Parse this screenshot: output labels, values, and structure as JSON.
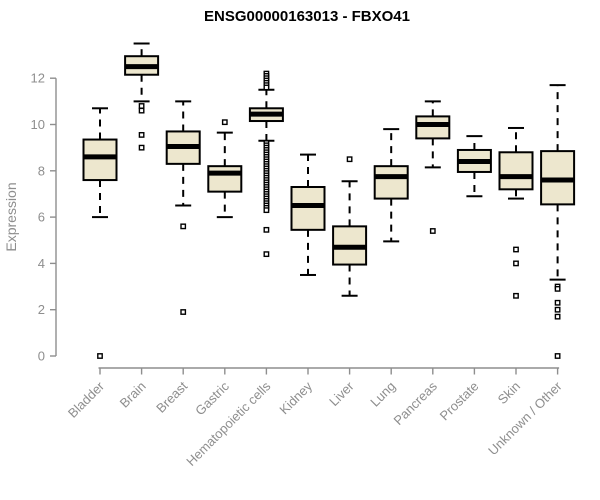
{
  "chart_data": {
    "type": "boxplot",
    "title": "ENSG00000163013 - FBXO41",
    "ylabel": "Expression",
    "yticks": [
      0,
      2,
      4,
      6,
      8,
      10,
      12
    ],
    "ylim": [
      0,
      13.7
    ],
    "grid": false,
    "legend": "none",
    "categories": [
      "Bladder",
      "Brain",
      "Breast",
      "Gastric",
      "Hematopoietic cells",
      "Kidney",
      "Liver",
      "Lung",
      "Pancreas",
      "Prostate",
      "Skin",
      "Unknown / Other"
    ],
    "series": [
      {
        "name": "Bladder",
        "whisker_low": 6.0,
        "q1": 7.6,
        "median": 8.6,
        "q3": 9.35,
        "whisker_high": 10.7,
        "outliers": [
          0
        ]
      },
      {
        "name": "Brain",
        "whisker_low": 11.0,
        "q1": 12.15,
        "median": 12.5,
        "q3": 12.95,
        "whisker_high": 13.5,
        "outliers": [
          10.8,
          10.6,
          9.55,
          9.0
        ]
      },
      {
        "name": "Breast",
        "whisker_low": 6.5,
        "q1": 8.3,
        "median": 9.05,
        "q3": 9.7,
        "whisker_high": 11.0,
        "outliers": [
          5.6,
          1.9
        ]
      },
      {
        "name": "Gastric",
        "whisker_low": 6.0,
        "q1": 7.1,
        "median": 7.9,
        "q3": 8.2,
        "whisker_high": 9.65,
        "outliers": [
          10.1
        ]
      },
      {
        "name": "Hematopoietic cells",
        "whisker_low": 9.3,
        "q1": 10.15,
        "median": 10.45,
        "q3": 10.7,
        "whisker_high": 11.5,
        "outliers": [
          12.2,
          12.1,
          12.0,
          11.9,
          11.8,
          11.7,
          11.6,
          9.2,
          9.1,
          9.0,
          8.9,
          8.8,
          8.7,
          8.6,
          8.5,
          8.4,
          8.3,
          8.2,
          8.1,
          8.0,
          7.9,
          7.8,
          7.7,
          7.6,
          7.5,
          7.4,
          7.3,
          7.2,
          7.1,
          7.0,
          6.9,
          6.8,
          6.7,
          6.6,
          6.5,
          6.4,
          6.3,
          5.45,
          4.4
        ]
      },
      {
        "name": "Kidney",
        "whisker_low": 3.5,
        "q1": 5.45,
        "median": 6.5,
        "q3": 7.3,
        "whisker_high": 8.7,
        "outliers": []
      },
      {
        "name": "Liver",
        "whisker_low": 2.6,
        "q1": 3.95,
        "median": 4.7,
        "q3": 5.6,
        "whisker_high": 7.55,
        "outliers": [
          8.5
        ]
      },
      {
        "name": "Lung",
        "whisker_low": 4.95,
        "q1": 6.8,
        "median": 7.75,
        "q3": 8.2,
        "whisker_high": 9.8,
        "outliers": []
      },
      {
        "name": "Pancreas",
        "whisker_low": 8.15,
        "q1": 9.4,
        "median": 10.0,
        "q3": 10.35,
        "whisker_high": 11.0,
        "outliers": [
          5.4
        ]
      },
      {
        "name": "Prostate",
        "whisker_low": 6.9,
        "q1": 7.95,
        "median": 8.4,
        "q3": 8.9,
        "whisker_high": 9.5,
        "outliers": []
      },
      {
        "name": "Skin",
        "whisker_low": 6.8,
        "q1": 7.2,
        "median": 7.75,
        "q3": 8.8,
        "whisker_high": 9.85,
        "outliers": [
          4.6,
          4.0,
          2.6
        ]
      },
      {
        "name": "Unknown / Other",
        "whisker_low": 3.3,
        "q1": 6.55,
        "median": 7.6,
        "q3": 8.85,
        "whisker_high": 11.7,
        "outliers": [
          3.0,
          2.9,
          2.3,
          2.0,
          1.7,
          0
        ]
      }
    ],
    "colors": {
      "box_fill": "#EDE7CE",
      "box_border": "#000000",
      "median": "#000000",
      "whisker": "#000000",
      "axis": "#8e8e8e",
      "label_text": "#8e8e8e",
      "title_text": "#000000",
      "background": "#ffffff"
    }
  }
}
